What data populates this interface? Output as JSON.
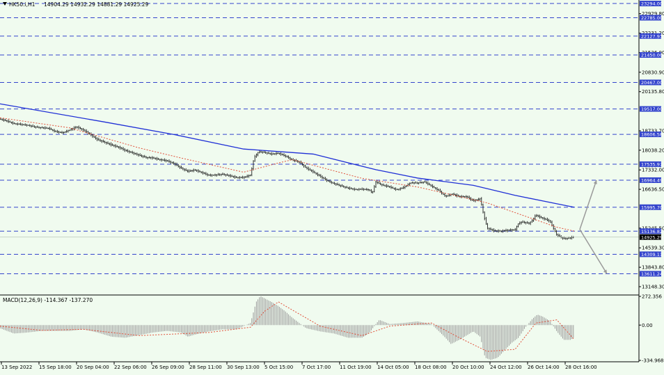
{
  "header": {
    "symbol": "HK50.i,H1",
    "ohlc": "14904.29 14932.29 14881.29 14925.29",
    "triangle_icon": "triangle-down-icon"
  },
  "colors": {
    "background": "#f0fbef",
    "candle": "#000000",
    "ma_slow": "#1f2fd6",
    "ma_fast": "#e0503a",
    "level_line": "#3344cc",
    "price_tag": "#000000",
    "histogram": "#999999",
    "signal": "#e0503a",
    "arrow": "#9a9a9a"
  },
  "chart_data": [
    {
      "type": "candlestick",
      "panel": "price",
      "price_axis_labels": [
        "22929.80",
        "22231.20",
        "21536.00",
        "20830.90",
        "20135.80",
        "18733.70",
        "18038.20",
        "17332.00",
        "16636.50",
        "15245.50",
        "14539.30",
        "13843.80",
        "13148.30"
      ],
      "horizontal_levels": [
        "23294.00",
        "22785.00",
        "22127.93",
        "21450.00",
        "20467.00",
        "19517.00",
        "18606.58",
        "17535.97",
        "16964.49",
        "15995.70",
        "15136.82",
        "14309.11",
        "13611.24"
      ],
      "current_price": "14925.29",
      "ylim": [
        12900,
        23420
      ],
      "x_labels": [
        "13 Sep 2022",
        "15 Sep 18:00",
        "20 Sep 04:00",
        "22 Sep 06:00",
        "26 Sep 09:00",
        "28 Sep 11:00",
        "30 Sep 13:00",
        "5 Oct 15:00",
        "7 Oct 17:00",
        "11 Oct 19:00",
        "14 Oct 05:00",
        "18 Oct 08:00",
        "20 Oct 10:00",
        "24 Oct 12:00",
        "26 Oct 14:00",
        "28 Oct 16:00"
      ],
      "close_path": [
        [
          0,
          19150
        ],
        [
          10,
          19080
        ],
        [
          20,
          18990
        ],
        [
          30,
          18960
        ],
        [
          40,
          18930
        ],
        [
          50,
          18870
        ],
        [
          60,
          18840
        ],
        [
          70,
          18820
        ],
        [
          80,
          18700
        ],
        [
          90,
          18660
        ],
        [
          100,
          18760
        ],
        [
          110,
          18880
        ],
        [
          120,
          18760
        ],
        [
          130,
          18600
        ],
        [
          140,
          18420
        ],
        [
          150,
          18330
        ],
        [
          160,
          18230
        ],
        [
          170,
          18150
        ],
        [
          180,
          18030
        ],
        [
          190,
          17950
        ],
        [
          200,
          17860
        ],
        [
          210,
          17780
        ],
        [
          220,
          17760
        ],
        [
          230,
          17700
        ],
        [
          240,
          17660
        ],
        [
          250,
          17560
        ],
        [
          260,
          17400
        ],
        [
          270,
          17280
        ],
        [
          280,
          17330
        ],
        [
          290,
          17240
        ],
        [
          300,
          17140
        ],
        [
          310,
          17150
        ],
        [
          320,
          17180
        ],
        [
          330,
          17120
        ],
        [
          340,
          17060
        ],
        [
          350,
          17060
        ],
        [
          360,
          17150
        ],
        [
          365,
          17770
        ],
        [
          372,
          17990
        ],
        [
          380,
          17960
        ],
        [
          390,
          17900
        ],
        [
          400,
          17930
        ],
        [
          410,
          17830
        ],
        [
          420,
          17690
        ],
        [
          430,
          17610
        ],
        [
          440,
          17400
        ],
        [
          450,
          17260
        ],
        [
          460,
          17100
        ],
        [
          470,
          16950
        ],
        [
          480,
          16840
        ],
        [
          490,
          16760
        ],
        [
          500,
          16680
        ],
        [
          510,
          16630
        ],
        [
          520,
          16640
        ],
        [
          530,
          16620
        ],
        [
          535,
          16500
        ],
        [
          540,
          16900
        ],
        [
          550,
          16780
        ],
        [
          560,
          16720
        ],
        [
          570,
          16620
        ],
        [
          580,
          16700
        ],
        [
          590,
          16870
        ],
        [
          600,
          16860
        ],
        [
          610,
          16900
        ],
        [
          620,
          16750
        ],
        [
          630,
          16600
        ],
        [
          640,
          16380
        ],
        [
          650,
          16470
        ],
        [
          660,
          16380
        ],
        [
          670,
          16380
        ],
        [
          680,
          16230
        ],
        [
          690,
          16300
        ],
        [
          695,
          15700
        ],
        [
          700,
          15250
        ],
        [
          710,
          15150
        ],
        [
          720,
          15140
        ],
        [
          730,
          15170
        ],
        [
          740,
          15190
        ],
        [
          745,
          15420
        ],
        [
          750,
          15470
        ],
        [
          760,
          15420
        ],
        [
          765,
          15530
        ],
        [
          770,
          15720
        ],
        [
          775,
          15650
        ],
        [
          780,
          15600
        ],
        [
          790,
          15500
        ],
        [
          795,
          15250
        ],
        [
          800,
          15000
        ],
        [
          810,
          14870
        ],
        [
          820,
          14900
        ],
        [
          825,
          14925
        ]
      ],
      "ma_slow_path": [
        [
          0,
          19700
        ],
        [
          150,
          19050
        ],
        [
          250,
          18600
        ],
        [
          350,
          18080
        ],
        [
          450,
          17900
        ],
        [
          540,
          17340
        ],
        [
          600,
          17040
        ],
        [
          680,
          16780
        ],
        [
          740,
          16420
        ],
        [
          800,
          16120
        ],
        [
          825,
          15995
        ]
      ],
      "ma_fast_path": [
        [
          0,
          19200
        ],
        [
          100,
          18840
        ],
        [
          200,
          18120
        ],
        [
          260,
          17760
        ],
        [
          350,
          17250
        ],
        [
          400,
          17580
        ],
        [
          420,
          17700
        ],
        [
          520,
          17030
        ],
        [
          600,
          16720
        ],
        [
          700,
          16150
        ],
        [
          800,
          15280
        ],
        [
          825,
          15140
        ]
      ],
      "projection_arrows": [
        {
          "from": [
            833,
            15200
          ],
          "to": [
            857,
            16964
          ]
        },
        {
          "from": [
            833,
            15200
          ],
          "to": [
            872,
            13611
          ]
        }
      ]
    },
    {
      "type": "bar",
      "panel": "oscillator",
      "label": "MACD(12,26,9) -114.367 -137.270",
      "axis_labels": [
        "272.356",
        "0.00",
        "-334.968"
      ],
      "ylim": [
        -334.968,
        272.356
      ],
      "histogram_path": [
        [
          0,
          -30
        ],
        [
          20,
          -80
        ],
        [
          40,
          -70
        ],
        [
          60,
          -55
        ],
        [
          80,
          -55
        ],
        [
          100,
          -55
        ],
        [
          120,
          -40
        ],
        [
          140,
          -70
        ],
        [
          160,
          -110
        ],
        [
          180,
          -120
        ],
        [
          200,
          -95
        ],
        [
          220,
          -70
        ],
        [
          240,
          -55
        ],
        [
          260,
          -70
        ],
        [
          270,
          -110
        ],
        [
          280,
          -90
        ],
        [
          300,
          -60
        ],
        [
          320,
          -40
        ],
        [
          340,
          -40
        ],
        [
          360,
          20
        ],
        [
          368,
          220
        ],
        [
          374,
          275
        ],
        [
          390,
          220
        ],
        [
          400,
          180
        ],
        [
          410,
          130
        ],
        [
          420,
          70
        ],
        [
          430,
          20
        ],
        [
          440,
          -30
        ],
        [
          460,
          -60
        ],
        [
          480,
          -80
        ],
        [
          500,
          -120
        ],
        [
          520,
          -120
        ],
        [
          530,
          -80
        ],
        [
          540,
          10
        ],
        [
          545,
          50
        ],
        [
          560,
          10
        ],
        [
          580,
          20
        ],
        [
          600,
          35
        ],
        [
          620,
          10
        ],
        [
          640,
          -120
        ],
        [
          648,
          -180
        ],
        [
          660,
          -140
        ],
        [
          680,
          -60
        ],
        [
          690,
          -110
        ],
        [
          697,
          -310
        ],
        [
          705,
          -330
        ],
        [
          715,
          -310
        ],
        [
          725,
          -240
        ],
        [
          735,
          -170
        ],
        [
          745,
          -120
        ],
        [
          755,
          -20
        ],
        [
          765,
          60
        ],
        [
          772,
          100
        ],
        [
          780,
          80
        ],
        [
          790,
          40
        ],
        [
          800,
          -60
        ],
        [
          810,
          -140
        ],
        [
          820,
          -140
        ],
        [
          825,
          -114
        ]
      ],
      "signal_path": [
        [
          0,
          -10
        ],
        [
          60,
          -50
        ],
        [
          120,
          -40
        ],
        [
          200,
          -100
        ],
        [
          300,
          -70
        ],
        [
          360,
          -20
        ],
        [
          380,
          130
        ],
        [
          400,
          220
        ],
        [
          460,
          -10
        ],
        [
          520,
          -100
        ],
        [
          560,
          -10
        ],
        [
          620,
          20
        ],
        [
          660,
          -120
        ],
        [
          700,
          -250
        ],
        [
          740,
          -230
        ],
        [
          770,
          20
        ],
        [
          800,
          50
        ],
        [
          825,
          -137
        ]
      ]
    }
  ]
}
